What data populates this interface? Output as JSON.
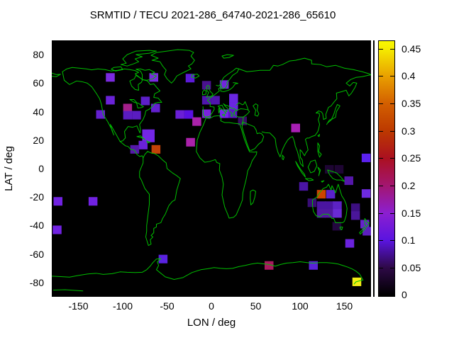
{
  "page": {
    "background": "#ffffff"
  },
  "chart_data": {
    "type": "heatmap",
    "title": "SRMTID / TECU 2021-286_64740-2021-286_65610",
    "xlabel": "LON / deg",
    "ylabel": "LAT / deg",
    "xlim": [
      -180,
      180
    ],
    "ylim": [
      -90,
      90
    ],
    "x_ticks": [
      -150,
      -100,
      -50,
      0,
      50,
      100,
      150
    ],
    "y_ticks": [
      80,
      60,
      40,
      20,
      0,
      -20,
      -40,
      -60,
      -80
    ],
    "grid": false,
    "plot_bg": "#000000",
    "coastline_color": "#00bf00",
    "bin_size_deg": {
      "lon": 10,
      "lat": 6
    },
    "colorbar": {
      "min": 0,
      "max": 0.464,
      "ticks": [
        0,
        0.05,
        0.1,
        0.15,
        0.2,
        0.25,
        0.3,
        0.35,
        0.4,
        0.45
      ],
      "stops": [
        {
          "v": 0.0,
          "color": "#000000"
        },
        {
          "v": 0.05,
          "color": "#2e0947"
        },
        {
          "v": 0.1,
          "color": "#5a14e0"
        },
        {
          "v": 0.15,
          "color": "#8c1fd0"
        },
        {
          "v": 0.2,
          "color": "#a31670"
        },
        {
          "v": 0.25,
          "color": "#ab1020"
        },
        {
          "v": 0.3,
          "color": "#bc3900"
        },
        {
          "v": 0.35,
          "color": "#d35f00"
        },
        {
          "v": 0.4,
          "color": "#e9a000"
        },
        {
          "v": 0.45,
          "color": "#f5ec00"
        },
        {
          "v": 0.464,
          "color": "#f9f800"
        }
      ]
    },
    "points": [
      {
        "lon": -114,
        "lat": 64,
        "value": 0.12,
        "color": "#7a2ae0"
      },
      {
        "lon": -65,
        "lat": 64,
        "value": 0.12,
        "color": "#7a2ae0"
      },
      {
        "lon": -24,
        "lat": 63.5,
        "value": 0.1,
        "color": "#5c1ad8"
      },
      {
        "lon": -5.5,
        "lat": 58.5,
        "value": 0.075,
        "color": "#4a128f"
      },
      {
        "lon": 14.5,
        "lat": 59,
        "value": 0.115,
        "color": "#7026dd"
      },
      {
        "lon": -114,
        "lat": 48,
        "value": 0.115,
        "color": "#6a22d8"
      },
      {
        "lon": -74.5,
        "lat": 47.5,
        "value": 0.1,
        "color": "#5c1fc8"
      },
      {
        "lon": -94.5,
        "lat": 42.5,
        "value": 0.185,
        "color": "#a51f8a"
      },
      {
        "lon": -63,
        "lat": 42.5,
        "value": 0.105,
        "color": "#6220cf"
      },
      {
        "lon": -125,
        "lat": 38,
        "value": 0.105,
        "color": "#6420d0"
      },
      {
        "lon": -94.5,
        "lat": 37.5,
        "value": 0.095,
        "color": "#5a1cc0"
      },
      {
        "lon": -84.5,
        "lat": 37.5,
        "value": 0.095,
        "color": "#5a1cc0"
      },
      {
        "lon": -5.5,
        "lat": 48,
        "value": 0.085,
        "color": "#4f16ad"
      },
      {
        "lon": 4.5,
        "lat": 48,
        "value": 0.085,
        "color": "#4f16ad"
      },
      {
        "lon": 25,
        "lat": 49.5,
        "value": 0.115,
        "color": "#6a26e2"
      },
      {
        "lon": 25,
        "lat": 43.5,
        "value": 0.115,
        "color": "#6a26e2"
      },
      {
        "lon": -35.5,
        "lat": 38,
        "value": 0.11,
        "color": "#6a1fd6"
      },
      {
        "lon": -25.5,
        "lat": 38,
        "value": 0.1,
        "color": "#5a10e0"
      },
      {
        "lon": -5.5,
        "lat": 38.5,
        "value": 0.12,
        "color": "#7a22dd"
      },
      {
        "lon": 14.5,
        "lat": 38.5,
        "value": 0.125,
        "color": "#7722ee"
      },
      {
        "lon": 24,
        "lat": 38.5,
        "value": 0.1,
        "color": "#5d13c9"
      },
      {
        "lon": 35,
        "lat": 33.5,
        "value": 0.055,
        "color": "#3a0d66"
      },
      {
        "lon": -16.5,
        "lat": 33,
        "value": 0.17,
        "color": "#aa22aa"
      },
      {
        "lon": -23.5,
        "lat": 18.5,
        "value": 0.17,
        "color": "#aa22aa"
      },
      {
        "lon": -71,
        "lat": 23,
        "value": 0.12,
        "color": "#7326e6",
        "w": 14,
        "h": 9
      },
      {
        "lon": -77,
        "lat": 16.5,
        "value": 0.115,
        "color": "#6a22d8"
      },
      {
        "lon": -86.5,
        "lat": 13.5,
        "value": 0.09,
        "color": "#5518aa"
      },
      {
        "lon": -62.5,
        "lat": 13.5,
        "value": 0.3,
        "color": "#c24208"
      },
      {
        "lon": 95,
        "lat": 28.5,
        "value": 0.175,
        "color": "#a81fb4"
      },
      {
        "lon": -173,
        "lat": -23,
        "value": 0.115,
        "color": "#7122e2"
      },
      {
        "lon": -133.5,
        "lat": -23,
        "value": 0.115,
        "color": "#7122e2"
      },
      {
        "lon": -174,
        "lat": -43,
        "value": 0.115,
        "color": "#7122e2"
      },
      {
        "lon": 174.5,
        "lat": 7.5,
        "value": 0.1,
        "color": "#5b21ee"
      },
      {
        "lon": 133,
        "lat": -0.5,
        "value": 0.03,
        "color": "#1e0533"
      },
      {
        "lon": 144,
        "lat": -0.5,
        "value": 0.03,
        "color": "#1e0533"
      },
      {
        "lon": 155,
        "lat": -8.5,
        "value": 0.09,
        "color": "#5517aa"
      },
      {
        "lon": 104,
        "lat": -12.5,
        "value": 0.085,
        "color": "#4a15a5"
      },
      {
        "lon": 124,
        "lat": -18,
        "value": 0.31,
        "color": "#cc4400"
      },
      {
        "lon": 134.5,
        "lat": -18,
        "value": 0.095,
        "color": "#5a22cc"
      },
      {
        "lon": 174.5,
        "lat": -17.5,
        "value": 0.115,
        "color": "#6e2ae0"
      },
      {
        "lon": 113.5,
        "lat": -24,
        "value": 0.06,
        "color": "#380d75"
      },
      {
        "lon": 124,
        "lat": -26,
        "value": 0.085,
        "color": "#4a15a0"
      },
      {
        "lon": 133,
        "lat": -26,
        "value": 0.085,
        "color": "#4a15a0"
      },
      {
        "lon": 142,
        "lat": -26,
        "value": 0.095,
        "color": "#5c22c4"
      },
      {
        "lon": 124,
        "lat": -31.5,
        "value": 0.085,
        "color": "#51199f"
      },
      {
        "lon": 133,
        "lat": -31.5,
        "value": 0.085,
        "color": "#51199f"
      },
      {
        "lon": 142,
        "lat": -31.5,
        "value": 0.11,
        "color": "#6a2ad4"
      },
      {
        "lon": 162.5,
        "lat": -27.5,
        "value": 0.065,
        "color": "#3c0f80"
      },
      {
        "lon": 162.5,
        "lat": -33,
        "value": 0.08,
        "color": "#4a169a"
      },
      {
        "lon": 141.5,
        "lat": -40.5,
        "value": 0.035,
        "color": "#23073f"
      },
      {
        "lon": 173,
        "lat": -39,
        "value": 0.105,
        "color": "#6622cc"
      },
      {
        "lon": 175.5,
        "lat": -44,
        "value": 0.095,
        "color": "#5c1fbe"
      },
      {
        "lon": 156,
        "lat": -52.5,
        "value": 0.11,
        "color": "#6a22dd"
      },
      {
        "lon": -54.5,
        "lat": -63.5,
        "value": 0.1,
        "color": "#5a22e0"
      },
      {
        "lon": 65,
        "lat": -68,
        "value": 0.195,
        "color": "#a81a5e"
      },
      {
        "lon": 115,
        "lat": -68,
        "value": 0.095,
        "color": "#5a22d8"
      },
      {
        "lon": 164,
        "lat": -79.5,
        "value": 0.45,
        "color": "#f2ee15"
      }
    ]
  }
}
